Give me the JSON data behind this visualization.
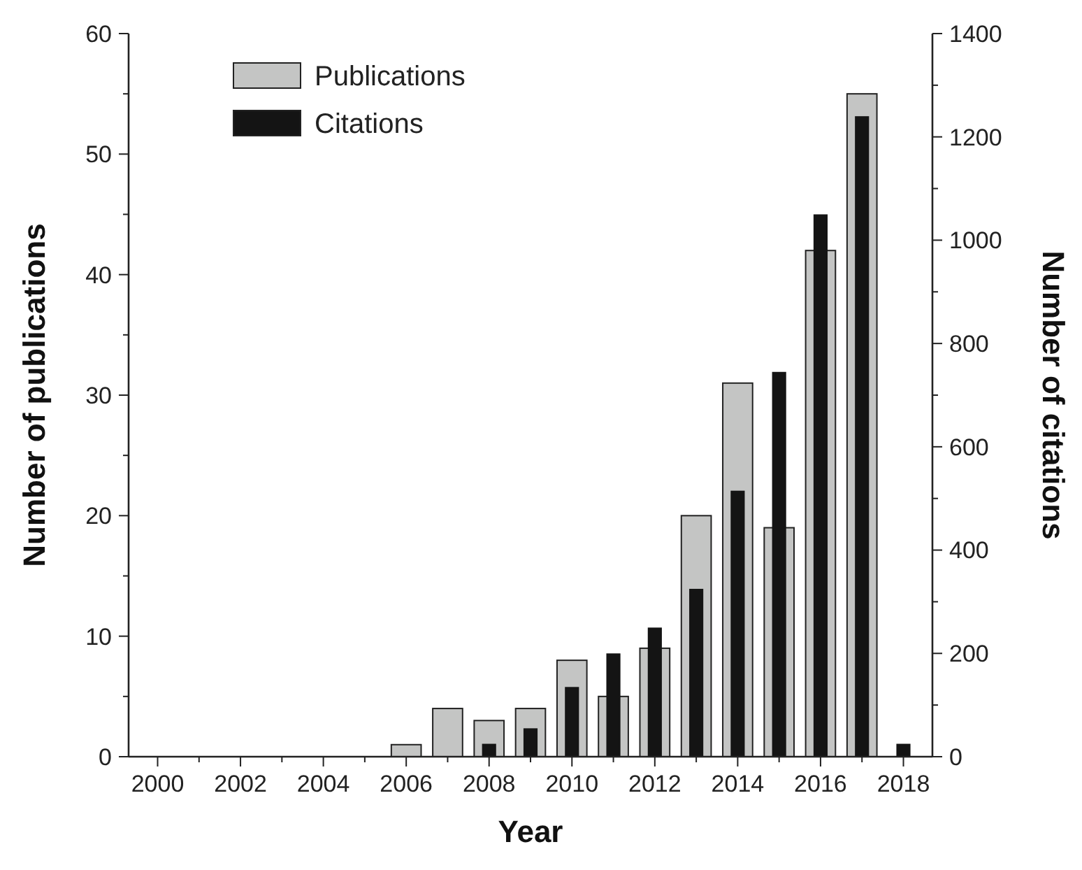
{
  "chart_data": {
    "type": "bar",
    "xlabel": "Year",
    "ylabel": "Number of publications",
    "y2label": "Number of citations",
    "x": [
      2000,
      2001,
      2002,
      2003,
      2004,
      2005,
      2006,
      2007,
      2008,
      2009,
      2010,
      2011,
      2012,
      2013,
      2014,
      2015,
      2016,
      2017,
      2018
    ],
    "series": [
      {
        "name": "Publications",
        "color": "#c4c5c4",
        "values": [
          0,
          0,
          0,
          0,
          0,
          0,
          1,
          4,
          3,
          4,
          8,
          5,
          9,
          20,
          31,
          19,
          42,
          55,
          0
        ]
      },
      {
        "name": "Citations",
        "color": "#141414",
        "axis": "y2",
        "values": [
          0,
          0,
          0,
          0,
          0,
          0,
          0,
          0,
          25,
          55,
          135,
          200,
          250,
          325,
          515,
          745,
          1050,
          1240,
          25
        ]
      }
    ],
    "xlim": [
      1999.3,
      2018.7
    ],
    "xticks": [
      2000,
      {
        "value": 2001,
        "label": null
      },
      2002,
      {
        "value": 2003,
        "label": null
      },
      2004,
      {
        "value": 2005,
        "label": null
      },
      2006,
      {
        "value": 2007,
        "label": null
      },
      2008,
      {
        "value": 2009,
        "label": null
      },
      2010,
      {
        "value": 2011,
        "label": null
      },
      2012,
      {
        "value": 2013,
        "label": null
      },
      2014,
      {
        "value": 2015,
        "label": null
      },
      2016,
      {
        "value": 2017,
        "label": null
      },
      2018
    ],
    "ylim": [
      0,
      60
    ],
    "yticks": [
      0,
      {
        "value": 5,
        "label": null
      },
      10,
      {
        "value": 15,
        "label": null
      },
      20,
      {
        "value": 25,
        "label": null
      },
      30,
      {
        "value": 35,
        "label": null
      },
      40,
      {
        "value": 45,
        "label": null
      },
      50,
      {
        "value": 55,
        "label": null
      },
      60
    ],
    "y2lim": [
      0,
      1400
    ],
    "y2ticks": [
      0,
      {
        "value": 100,
        "label": null
      },
      200,
      {
        "value": 300,
        "label": null
      },
      400,
      {
        "value": 500,
        "label": null
      },
      600,
      {
        "value": 700,
        "label": null
      },
      800,
      {
        "value": 900,
        "label": null
      },
      1000,
      {
        "value": 1100,
        "label": null
      },
      1200,
      {
        "value": 1300,
        "label": null
      },
      1400
    ],
    "legend": "top left",
    "grid": false
  }
}
